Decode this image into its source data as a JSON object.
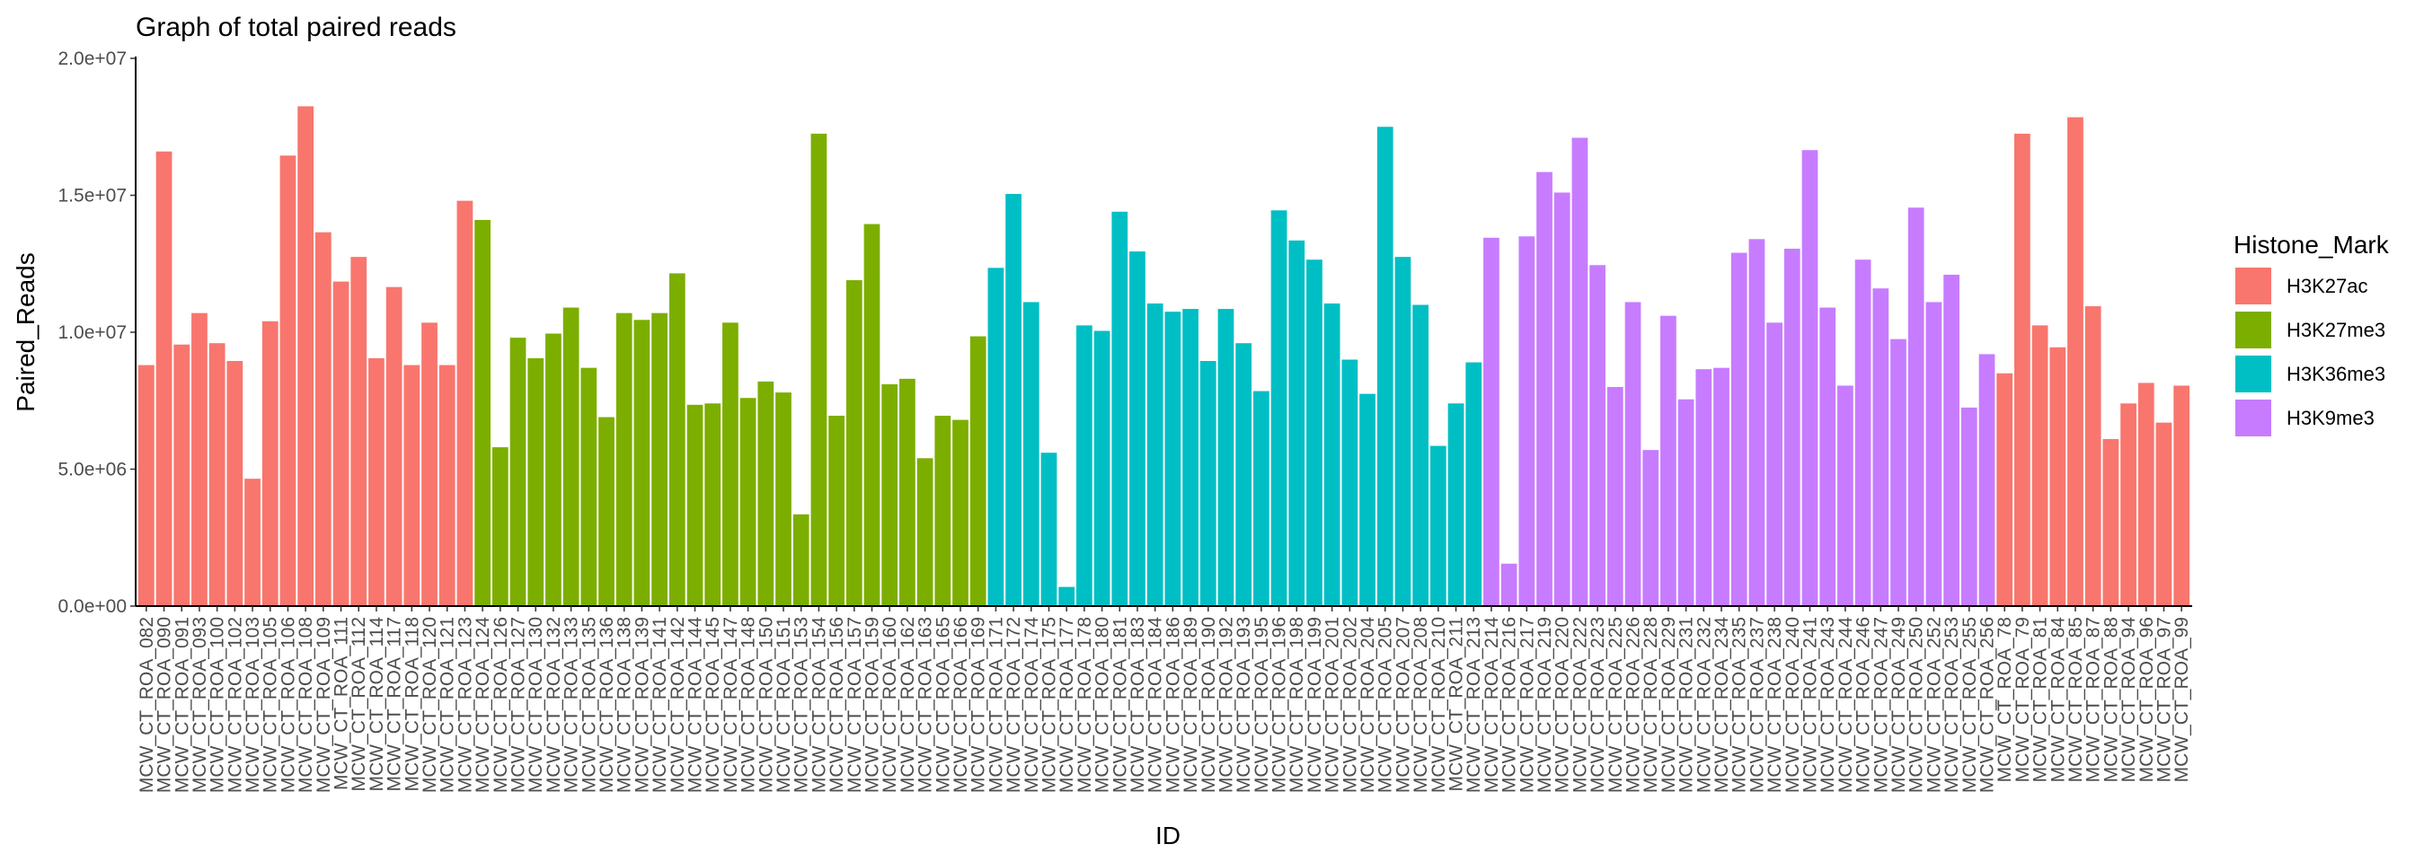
{
  "chart_data": {
    "type": "bar",
    "title": "Graph of total paired reads",
    "xlabel": "ID",
    "ylabel": "Paired_Reads",
    "ylim": [
      0,
      20000000
    ],
    "yticks": [
      0,
      5000000,
      10000000,
      15000000,
      20000000
    ],
    "ytick_labels": [
      "0.0e+00",
      "5.0e+06",
      "1.0e+07",
      "1.5e+07",
      "2.0e+07"
    ],
    "grid": false,
    "legend": {
      "title": "Histone_Mark",
      "placement": "right",
      "entries": [
        {
          "label": "H3K27ac",
          "color": "#F8766D"
        },
        {
          "label": "H3K27me3",
          "color": "#7CAE00"
        },
        {
          "label": "H3K36me3",
          "color": "#00BFC4"
        },
        {
          "label": "H3K9me3",
          "color": "#C77CFF"
        }
      ]
    },
    "categories": [
      "MCW_CT_ROA_082",
      "MCW_CT_ROA_090",
      "MCW_CT_ROA_091",
      "MCW_CT_ROA_093",
      "MCW_CT_ROA_100",
      "MCW_CT_ROA_102",
      "MCW_CT_ROA_103",
      "MCW_CT_ROA_105",
      "MCW_CT_ROA_106",
      "MCW_CT_ROA_108",
      "MCW_CT_ROA_109",
      "MCW_CT_ROA_111",
      "MCW_CT_ROA_112",
      "MCW_CT_ROA_114",
      "MCW_CT_ROA_117",
      "MCW_CT_ROA_118",
      "MCW_CT_ROA_120",
      "MCW_CT_ROA_121",
      "MCW_CT_ROA_123",
      "MCW_CT_ROA_124",
      "MCW_CT_ROA_126",
      "MCW_CT_ROA_127",
      "MCW_CT_ROA_130",
      "MCW_CT_ROA_132",
      "MCW_CT_ROA_133",
      "MCW_CT_ROA_135",
      "MCW_CT_ROA_136",
      "MCW_CT_ROA_138",
      "MCW_CT_ROA_139",
      "MCW_CT_ROA_141",
      "MCW_CT_ROA_142",
      "MCW_CT_ROA_144",
      "MCW_CT_ROA_145",
      "MCW_CT_ROA_147",
      "MCW_CT_ROA_148",
      "MCW_CT_ROA_150",
      "MCW_CT_ROA_151",
      "MCW_CT_ROA_153",
      "MCW_CT_ROA_154",
      "MCW_CT_ROA_156",
      "MCW_CT_ROA_157",
      "MCW_CT_ROA_159",
      "MCW_CT_ROA_160",
      "MCW_CT_ROA_162",
      "MCW_CT_ROA_163",
      "MCW_CT_ROA_165",
      "MCW_CT_ROA_166",
      "MCW_CT_ROA_169",
      "MCW_CT_ROA_171",
      "MCW_CT_ROA_172",
      "MCW_CT_ROA_174",
      "MCW_CT_ROA_175",
      "MCW_CT_ROA_177",
      "MCW_CT_ROA_178",
      "MCW_CT_ROA_180",
      "MCW_CT_ROA_181",
      "MCW_CT_ROA_183",
      "MCW_CT_ROA_184",
      "MCW_CT_ROA_186",
      "MCW_CT_ROA_189",
      "MCW_CT_ROA_190",
      "MCW_CT_ROA_192",
      "MCW_CT_ROA_193",
      "MCW_CT_ROA_195",
      "MCW_CT_ROA_196",
      "MCW_CT_ROA_198",
      "MCW_CT_ROA_199",
      "MCW_CT_ROA_201",
      "MCW_CT_ROA_202",
      "MCW_CT_ROA_204",
      "MCW_CT_ROA_205",
      "MCW_CT_ROA_207",
      "MCW_CT_ROA_208",
      "MCW_CT_ROA_210",
      "MCW_CT_ROA_211",
      "MCW_CT_ROA_213",
      "MCW_CT_ROA_214",
      "MCW_CT_ROA_216",
      "MCW_CT_ROA_217",
      "MCW_CT_ROA_219",
      "MCW_CT_ROA_220",
      "MCW_CT_ROA_222",
      "MCW_CT_ROA_223",
      "MCW_CT_ROA_225",
      "MCW_CT_ROA_226",
      "MCW_CT_ROA_228",
      "MCW_CT_ROA_229",
      "MCW_CT_ROA_231",
      "MCW_CT_ROA_232",
      "MCW_CT_ROA_234",
      "MCW_CT_ROA_235",
      "MCW_CT_ROA_237",
      "MCW_CT_ROA_238",
      "MCW_CT_ROA_240",
      "MCW_CT_ROA_241",
      "MCW_CT_ROA_243",
      "MCW_CT_ROA_244",
      "MCW_CT_ROA_246",
      "MCW_CT_ROA_247",
      "MCW_CT_ROA_249",
      "MCW_CT_ROA_250",
      "MCW_CT_ROA_252",
      "MCW_CT_ROA_253",
      "MCW_CT_ROA_255",
      "MCW_CT_ROA_256",
      "MCW_CT_ROA_78",
      "MCW_CT_ROA_79",
      "MCW_CT_ROA_81",
      "MCW_CT_ROA_84",
      "MCW_CT_ROA_85",
      "MCW_CT_ROA_87",
      "MCW_CT_ROA_88",
      "MCW_CT_ROA_94",
      "MCW_CT_ROA_96",
      "MCW_CT_ROA_97",
      "MCW_CT_ROA_99"
    ],
    "values": [
      8800000,
      16600000,
      9550000,
      10700000,
      9600000,
      8950000,
      4650000,
      10400000,
      16450000,
      18250000,
      13650000,
      11850000,
      12750000,
      9050000,
      11650000,
      8800000,
      10350000,
      8800000,
      14800000,
      14100000,
      5800000,
      9800000,
      9050000,
      9950000,
      10900000,
      8700000,
      6900000,
      10700000,
      10450000,
      10700000,
      12150000,
      7350000,
      7400000,
      10350000,
      7600000,
      8200000,
      7800000,
      3350000,
      17250000,
      6950000,
      11900000,
      13950000,
      8100000,
      8300000,
      5400000,
      6950000,
      6800000,
      9850000,
      12350000,
      15050000,
      11100000,
      5600000,
      700000,
      10250000,
      10050000,
      14400000,
      12950000,
      11050000,
      10750000,
      10850000,
      8950000,
      10850000,
      9600000,
      7850000,
      14450000,
      13350000,
      12650000,
      11050000,
      9000000,
      7750000,
      17500000,
      12750000,
      11000000,
      5850000,
      7400000,
      8900000,
      13450000,
      1550000,
      13500000,
      15850000,
      15100000,
      17100000,
      12450000,
      8000000,
      11100000,
      5700000,
      10600000,
      7550000,
      8650000,
      8700000,
      12900000,
      13400000,
      10350000,
      13050000,
      16650000,
      10900000,
      8050000,
      12650000,
      11600000,
      9750000,
      14550000,
      11100000,
      12100000,
      7250000,
      9200000,
      8500000,
      17250000,
      10250000,
      9450000,
      17850000,
      10950000,
      6100000,
      7400000,
      8150000,
      6700000,
      8050000
    ],
    "series_group": [
      "H3K27ac",
      "H3K27ac",
      "H3K27ac",
      "H3K27ac",
      "H3K27ac",
      "H3K27ac",
      "H3K27ac",
      "H3K27ac",
      "H3K27ac",
      "H3K27ac",
      "H3K27ac",
      "H3K27ac",
      "H3K27ac",
      "H3K27ac",
      "H3K27ac",
      "H3K27ac",
      "H3K27ac",
      "H3K27ac",
      "H3K27ac",
      "H3K27me3",
      "H3K27me3",
      "H3K27me3",
      "H3K27me3",
      "H3K27me3",
      "H3K27me3",
      "H3K27me3",
      "H3K27me3",
      "H3K27me3",
      "H3K27me3",
      "H3K27me3",
      "H3K27me3",
      "H3K27me3",
      "H3K27me3",
      "H3K27me3",
      "H3K27me3",
      "H3K27me3",
      "H3K27me3",
      "H3K27me3",
      "H3K27me3",
      "H3K27me3",
      "H3K27me3",
      "H3K27me3",
      "H3K27me3",
      "H3K27me3",
      "H3K27me3",
      "H3K27me3",
      "H3K27me3",
      "H3K27me3",
      "H3K36me3",
      "H3K36me3",
      "H3K36me3",
      "H3K36me3",
      "H3K36me3",
      "H3K36me3",
      "H3K36me3",
      "H3K36me3",
      "H3K36me3",
      "H3K36me3",
      "H3K36me3",
      "H3K36me3",
      "H3K36me3",
      "H3K36me3",
      "H3K36me3",
      "H3K36me3",
      "H3K36me3",
      "H3K36me3",
      "H3K36me3",
      "H3K36me3",
      "H3K36me3",
      "H3K36me3",
      "H3K36me3",
      "H3K36me3",
      "H3K36me3",
      "H3K36me3",
      "H3K36me3",
      "H3K36me3",
      "H3K9me3",
      "H3K9me3",
      "H3K9me3",
      "H3K9me3",
      "H3K9me3",
      "H3K9me3",
      "H3K9me3",
      "H3K9me3",
      "H3K9me3",
      "H3K9me3",
      "H3K9me3",
      "H3K9me3",
      "H3K9me3",
      "H3K9me3",
      "H3K9me3",
      "H3K9me3",
      "H3K9me3",
      "H3K9me3",
      "H3K9me3",
      "H3K9me3",
      "H3K9me3",
      "H3K9me3",
      "H3K9me3",
      "H3K9me3",
      "H3K9me3",
      "H3K9me3",
      "H3K9me3",
      "H3K9me3",
      "H3K9me3",
      "H3K27ac",
      "H3K27ac",
      "H3K27ac",
      "H3K27ac",
      "H3K27ac",
      "H3K27ac",
      "H3K27ac",
      "H3K27ac",
      "H3K27ac",
      "H3K27ac",
      "H3K27ac"
    ]
  }
}
